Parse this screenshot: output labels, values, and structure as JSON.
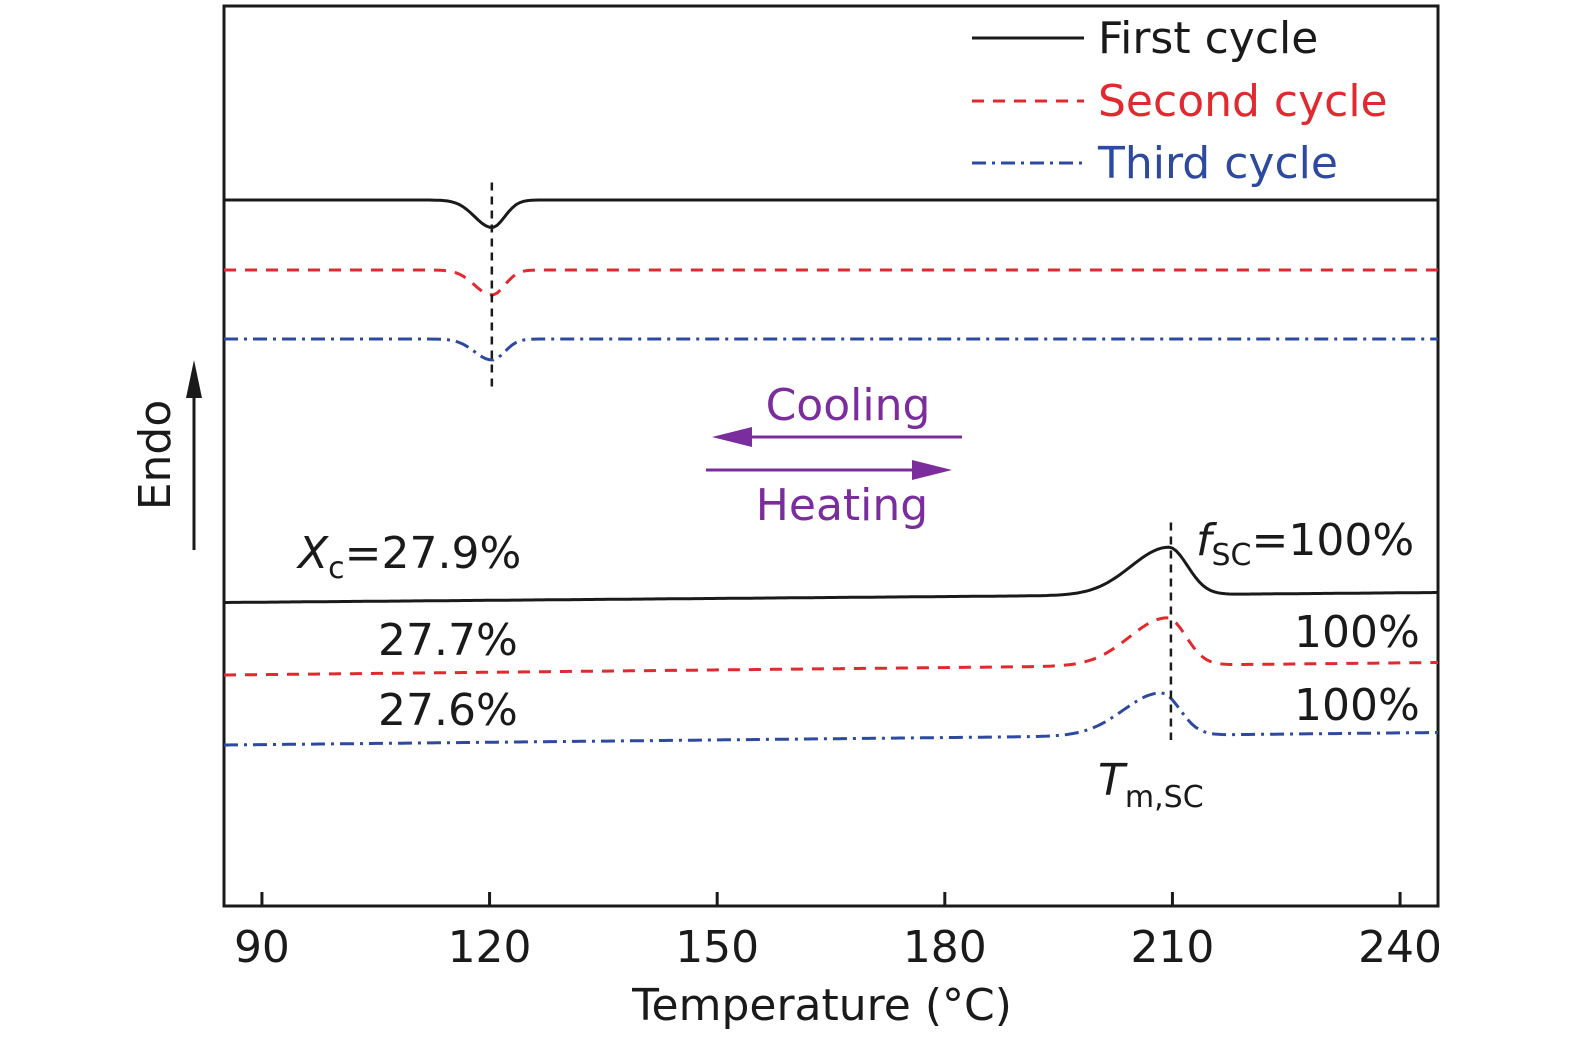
{
  "chart_data": {
    "type": "line",
    "xlabel": "Temperature (°C)",
    "ylabel": "Endo",
    "xlim": [
      85,
      245
    ],
    "xticks": [
      "90",
      "120",
      "150",
      "180",
      "210",
      "240"
    ],
    "xtick_values": [
      90,
      120,
      150,
      180,
      210,
      240
    ],
    "legend": {
      "placement": "top-right",
      "entries": [
        {
          "label": "First cycle",
          "color": "#1a1a1a",
          "style": "solid"
        },
        {
          "label": "Second cycle",
          "color": "#e02a2f",
          "style": "dashed"
        },
        {
          "label": "Third cycle",
          "color": "#2e4aa0",
          "style": "dashdot"
        }
      ]
    },
    "direction_labels": {
      "cooling": "Cooling",
      "heating": "Heating",
      "color": "#7b2d9e"
    },
    "cooling_series": [
      {
        "name": "First cycle",
        "baseline": 0.0,
        "peak_at": 120.3,
        "peak_amp": -0.55,
        "slope": 0.0
      },
      {
        "name": "Second cycle",
        "baseline": -1.4,
        "peak_at": 120.3,
        "peak_amp": -0.5,
        "slope": 0.0
      },
      {
        "name": "Third cycle",
        "baseline": -2.78,
        "peak_at": 120.3,
        "peak_amp": -0.42,
        "slope": 0.0
      }
    ],
    "heating_series": [
      {
        "name": "First cycle",
        "start": -8.05,
        "end": -7.85,
        "peak_at": 209.5,
        "peak_amp": 0.95
      },
      {
        "name": "Second cycle",
        "start": -9.5,
        "end": -9.25,
        "peak_at": 209.3,
        "peak_amp": 0.95
      },
      {
        "name": "Third cycle",
        "start": -10.9,
        "end": -10.65,
        "peak_at": 208.5,
        "peak_amp": 0.85
      }
    ],
    "markers": {
      "cooling_peak_temp": 120.3,
      "heating_peak_temp": 209.8
    },
    "annotations": {
      "xc_symbol": "X",
      "xc_sub": "c",
      "xc_values": [
        "=27.9%",
        "27.7%",
        "27.6%"
      ],
      "fsc_symbol": "f",
      "fsc_sub": "SC",
      "fsc_values": [
        "=100%",
        "100%",
        "100%"
      ],
      "tm_symbol": "T",
      "tm_sub": "m,SC"
    }
  }
}
